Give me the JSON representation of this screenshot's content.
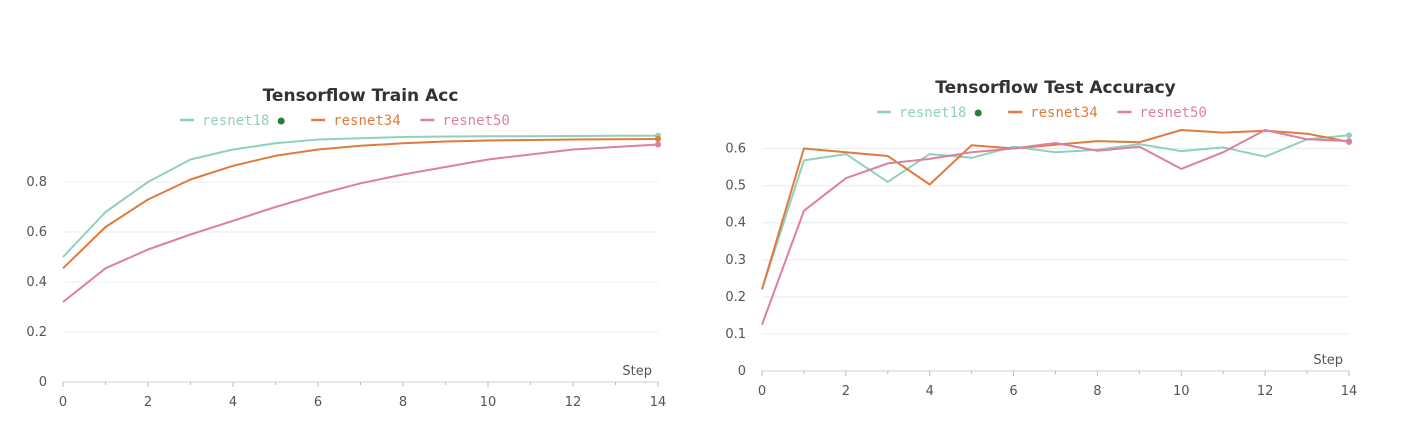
{
  "chart_data": [
    {
      "type": "line",
      "title": "Tensorflow Train Acc",
      "xlabel": "Step",
      "ylabel": "",
      "xlim": [
        0,
        14
      ],
      "ylim": [
        0,
        1.0
      ],
      "x_ticks": [
        0,
        2,
        4,
        6,
        8,
        10,
        12,
        14
      ],
      "y_ticks": [
        0,
        0.2,
        0.4,
        0.6,
        0.8
      ],
      "y_tick_labels": [
        "0",
        "0.2",
        "0.4",
        "0.6",
        "0.8"
      ],
      "grid": true,
      "legend_position": "top-center",
      "x": [
        0,
        1,
        2,
        3,
        4,
        5,
        6,
        7,
        8,
        9,
        10,
        11,
        12,
        13,
        14
      ],
      "series": [
        {
          "name": "resnet18",
          "color": "#8fd1bc",
          "values": [
            0.5,
            0.68,
            0.8,
            0.89,
            0.93,
            0.955,
            0.97,
            0.975,
            0.98,
            0.982,
            0.983,
            0.983,
            0.984,
            0.985,
            0.985
          ]
        },
        {
          "name": "resnet34",
          "color": "#df7b3c",
          "values": [
            0.455,
            0.62,
            0.73,
            0.81,
            0.865,
            0.905,
            0.93,
            0.945,
            0.955,
            0.962,
            0.966,
            0.968,
            0.97,
            0.971,
            0.972
          ]
        },
        {
          "name": "resnet50",
          "color": "#de7fa1",
          "values": [
            0.32,
            0.455,
            0.53,
            0.59,
            0.645,
            0.7,
            0.75,
            0.795,
            0.83,
            0.86,
            0.89,
            0.91,
            0.93,
            0.94,
            0.95
          ]
        }
      ],
      "legend_dot_color": "#2e7d32"
    },
    {
      "type": "line",
      "title": "Tensorflow Test Accuracy",
      "xlabel": "Step",
      "ylabel": "",
      "xlim": [
        0,
        14
      ],
      "ylim": [
        0,
        0.65
      ],
      "x_ticks": [
        0,
        2,
        4,
        6,
        8,
        10,
        12,
        14
      ],
      "y_ticks": [
        0,
        0.1,
        0.2,
        0.3,
        0.4,
        0.5,
        0.6
      ],
      "y_tick_labels": [
        "0",
        "0.1",
        "0.2",
        "0.3",
        "0.4",
        "0.5",
        "0.6"
      ],
      "grid": true,
      "legend_position": "top-center",
      "x": [
        0,
        1,
        2,
        3,
        4,
        5,
        6,
        7,
        8,
        9,
        10,
        11,
        12,
        13,
        14
      ],
      "series": [
        {
          "name": "resnet18",
          "color": "#8fd1bc",
          "values": [
            0.22,
            0.568,
            0.585,
            0.51,
            0.585,
            0.575,
            0.605,
            0.59,
            0.597,
            0.612,
            0.593,
            0.603,
            0.578,
            0.625,
            0.636
          ]
        },
        {
          "name": "resnet34",
          "color": "#df7b3c",
          "values": [
            0.22,
            0.6,
            0.59,
            0.58,
            0.503,
            0.609,
            0.6,
            0.61,
            0.62,
            0.617,
            0.65,
            0.643,
            0.648,
            0.64,
            0.618
          ]
        },
        {
          "name": "resnet50",
          "color": "#de7fa1",
          "values": [
            0.125,
            0.432,
            0.52,
            0.56,
            0.572,
            0.59,
            0.6,
            0.615,
            0.594,
            0.605,
            0.545,
            0.59,
            0.65,
            0.625,
            0.62
          ]
        }
      ],
      "legend_dot_color": "#2e7d32"
    }
  ]
}
